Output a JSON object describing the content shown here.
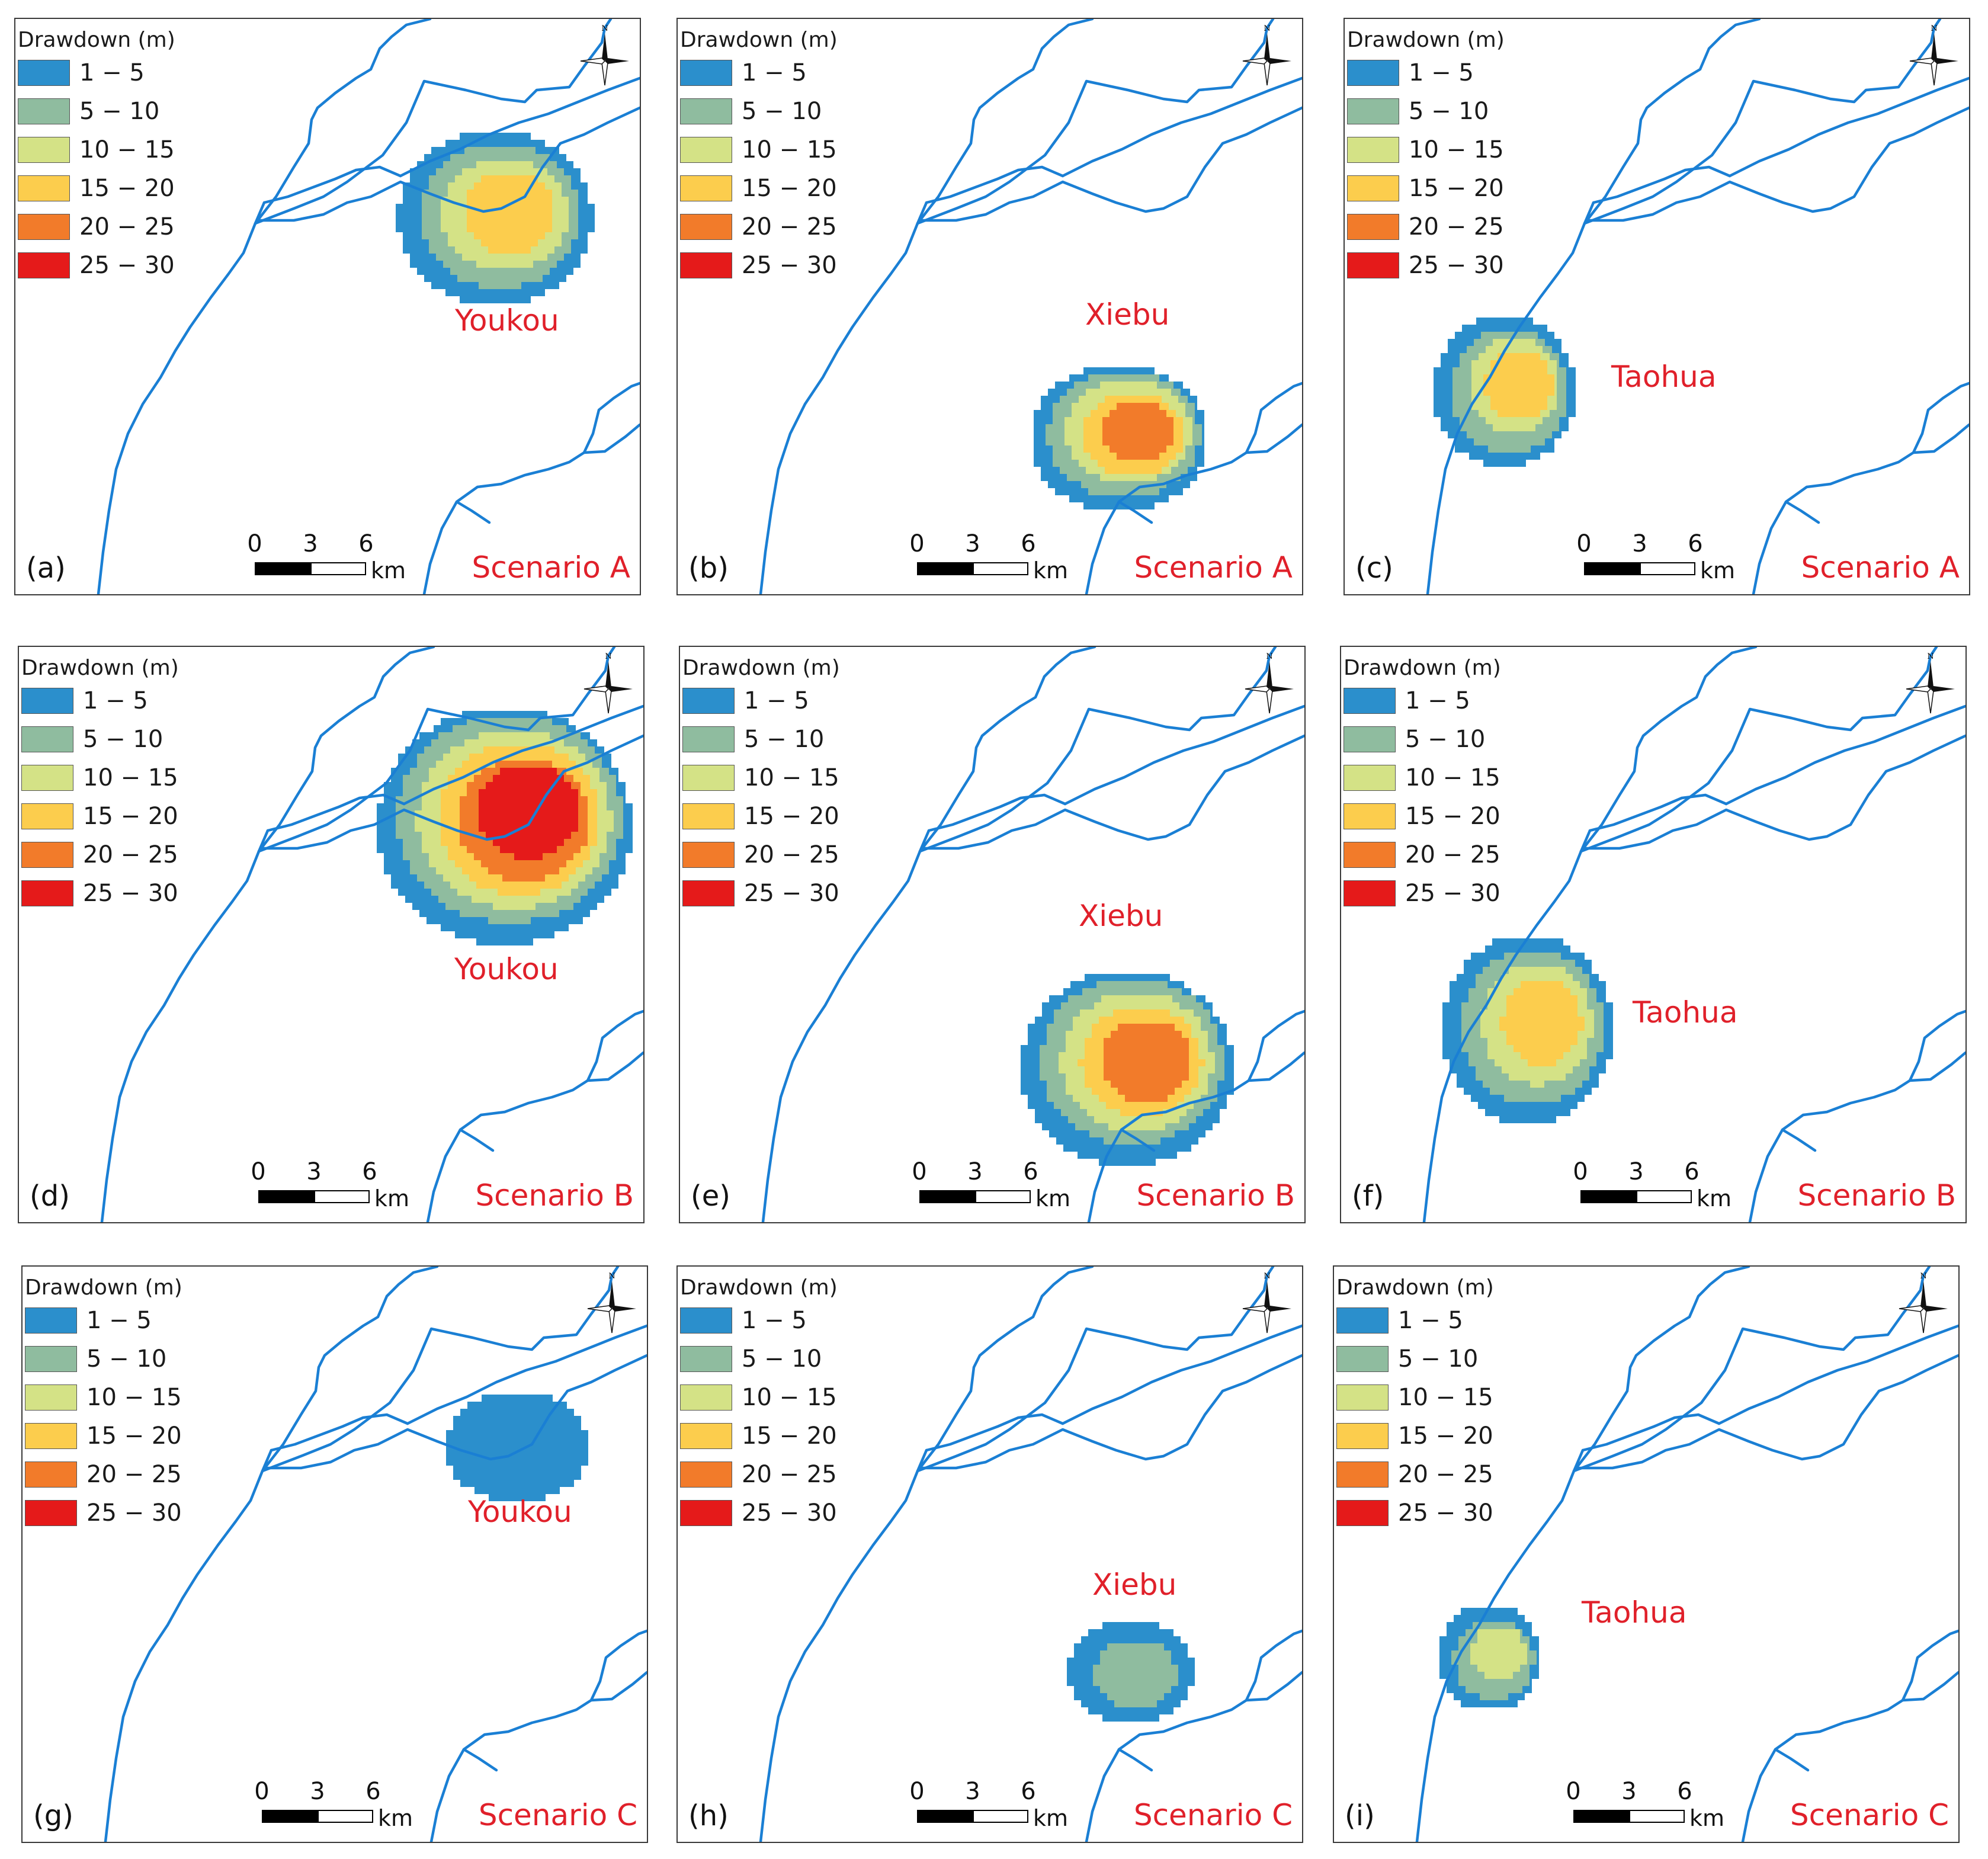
{
  "legend": {
    "title": "Drawdown (m)",
    "classes": [
      {
        "label": "1 − 5",
        "color": "#2b8fcc"
      },
      {
        "label": "5 − 10",
        "color": "#8fbc9f"
      },
      {
        "label": "10 − 15",
        "color": "#d4e286"
      },
      {
        "label": "15 − 20",
        "color": "#fccd4d"
      },
      {
        "label": "20 − 25",
        "color": "#f27b2a"
      },
      {
        "label": "25 − 30",
        "color": "#e51a1a"
      }
    ]
  },
  "scalebar": {
    "ticks": [
      "0",
      "3",
      "6"
    ],
    "unit": "km"
  },
  "compass_label": "N",
  "river_color": "#1a7fd4",
  "panels": [
    {
      "id": "a",
      "letter": "(a)",
      "scenario": "Scenario A",
      "site": "Youkou",
      "max_class": "15 − 20"
    },
    {
      "id": "b",
      "letter": "(b)",
      "scenario": "Scenario A",
      "site": "Xiebu",
      "max_class": "20 − 25"
    },
    {
      "id": "c",
      "letter": "(c)",
      "scenario": "Scenario A",
      "site": "Taohua",
      "max_class": "15 − 20"
    },
    {
      "id": "d",
      "letter": "(d)",
      "scenario": "Scenario B",
      "site": "Youkou",
      "max_class": "25 − 30"
    },
    {
      "id": "e",
      "letter": "(e)",
      "scenario": "Scenario B",
      "site": "Xiebu",
      "max_class": "20 − 25"
    },
    {
      "id": "f",
      "letter": "(f)",
      "scenario": "Scenario B",
      "site": "Taohua",
      "max_class": "15 − 20"
    },
    {
      "id": "g",
      "letter": "(g)",
      "scenario": "Scenario C",
      "site": "Youkou",
      "max_class": "1 − 5"
    },
    {
      "id": "h",
      "letter": "(h)",
      "scenario": "Scenario C",
      "site": "Xiebu",
      "max_class": "5 − 10"
    },
    {
      "id": "i",
      "letter": "(i)",
      "scenario": "Scenario C",
      "site": "Taohua",
      "max_class": "10 − 15"
    }
  ]
}
